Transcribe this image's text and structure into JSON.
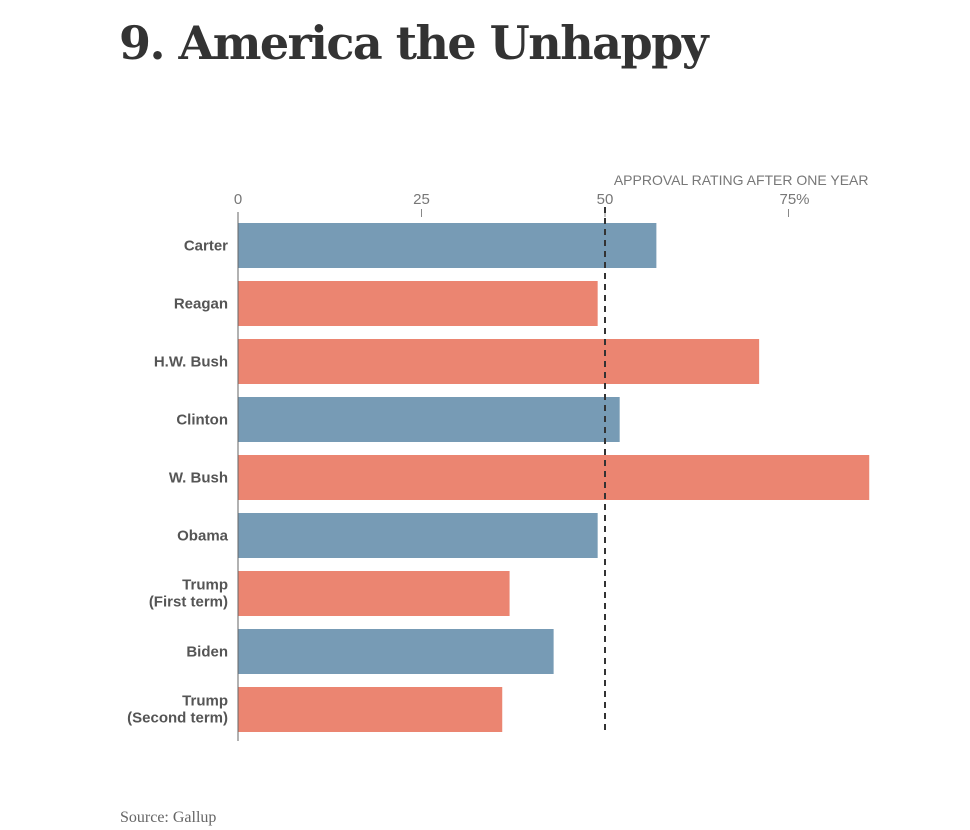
{
  "title": "9. America the Unhappy",
  "source": "Source: Gallup",
  "chart_data": {
    "type": "bar",
    "orientation": "horizontal",
    "title": "",
    "xlabel": "APPROVAL RATING AFTER ONE YEAR",
    "ticks": [
      "0",
      "25",
      "50",
      "75%"
    ],
    "tick_values": [
      0,
      25,
      50,
      75
    ],
    "xlim": [
      0,
      86
    ],
    "reference_line": 50,
    "categories": [
      "Carter",
      "Reagan",
      "H.W. Bush",
      "Clinton",
      "W. Bush",
      "Obama",
      "Trump\n(First term)",
      "Biden",
      "Trump\n(Second term)"
    ],
    "values": [
      57,
      49,
      71,
      52,
      86,
      49,
      37,
      43,
      36
    ],
    "party": [
      "D",
      "R",
      "R",
      "D",
      "R",
      "D",
      "R",
      "D",
      "R"
    ],
    "colors": {
      "D": "#779bb5",
      "R": "#eb8571"
    },
    "grid": false
  }
}
